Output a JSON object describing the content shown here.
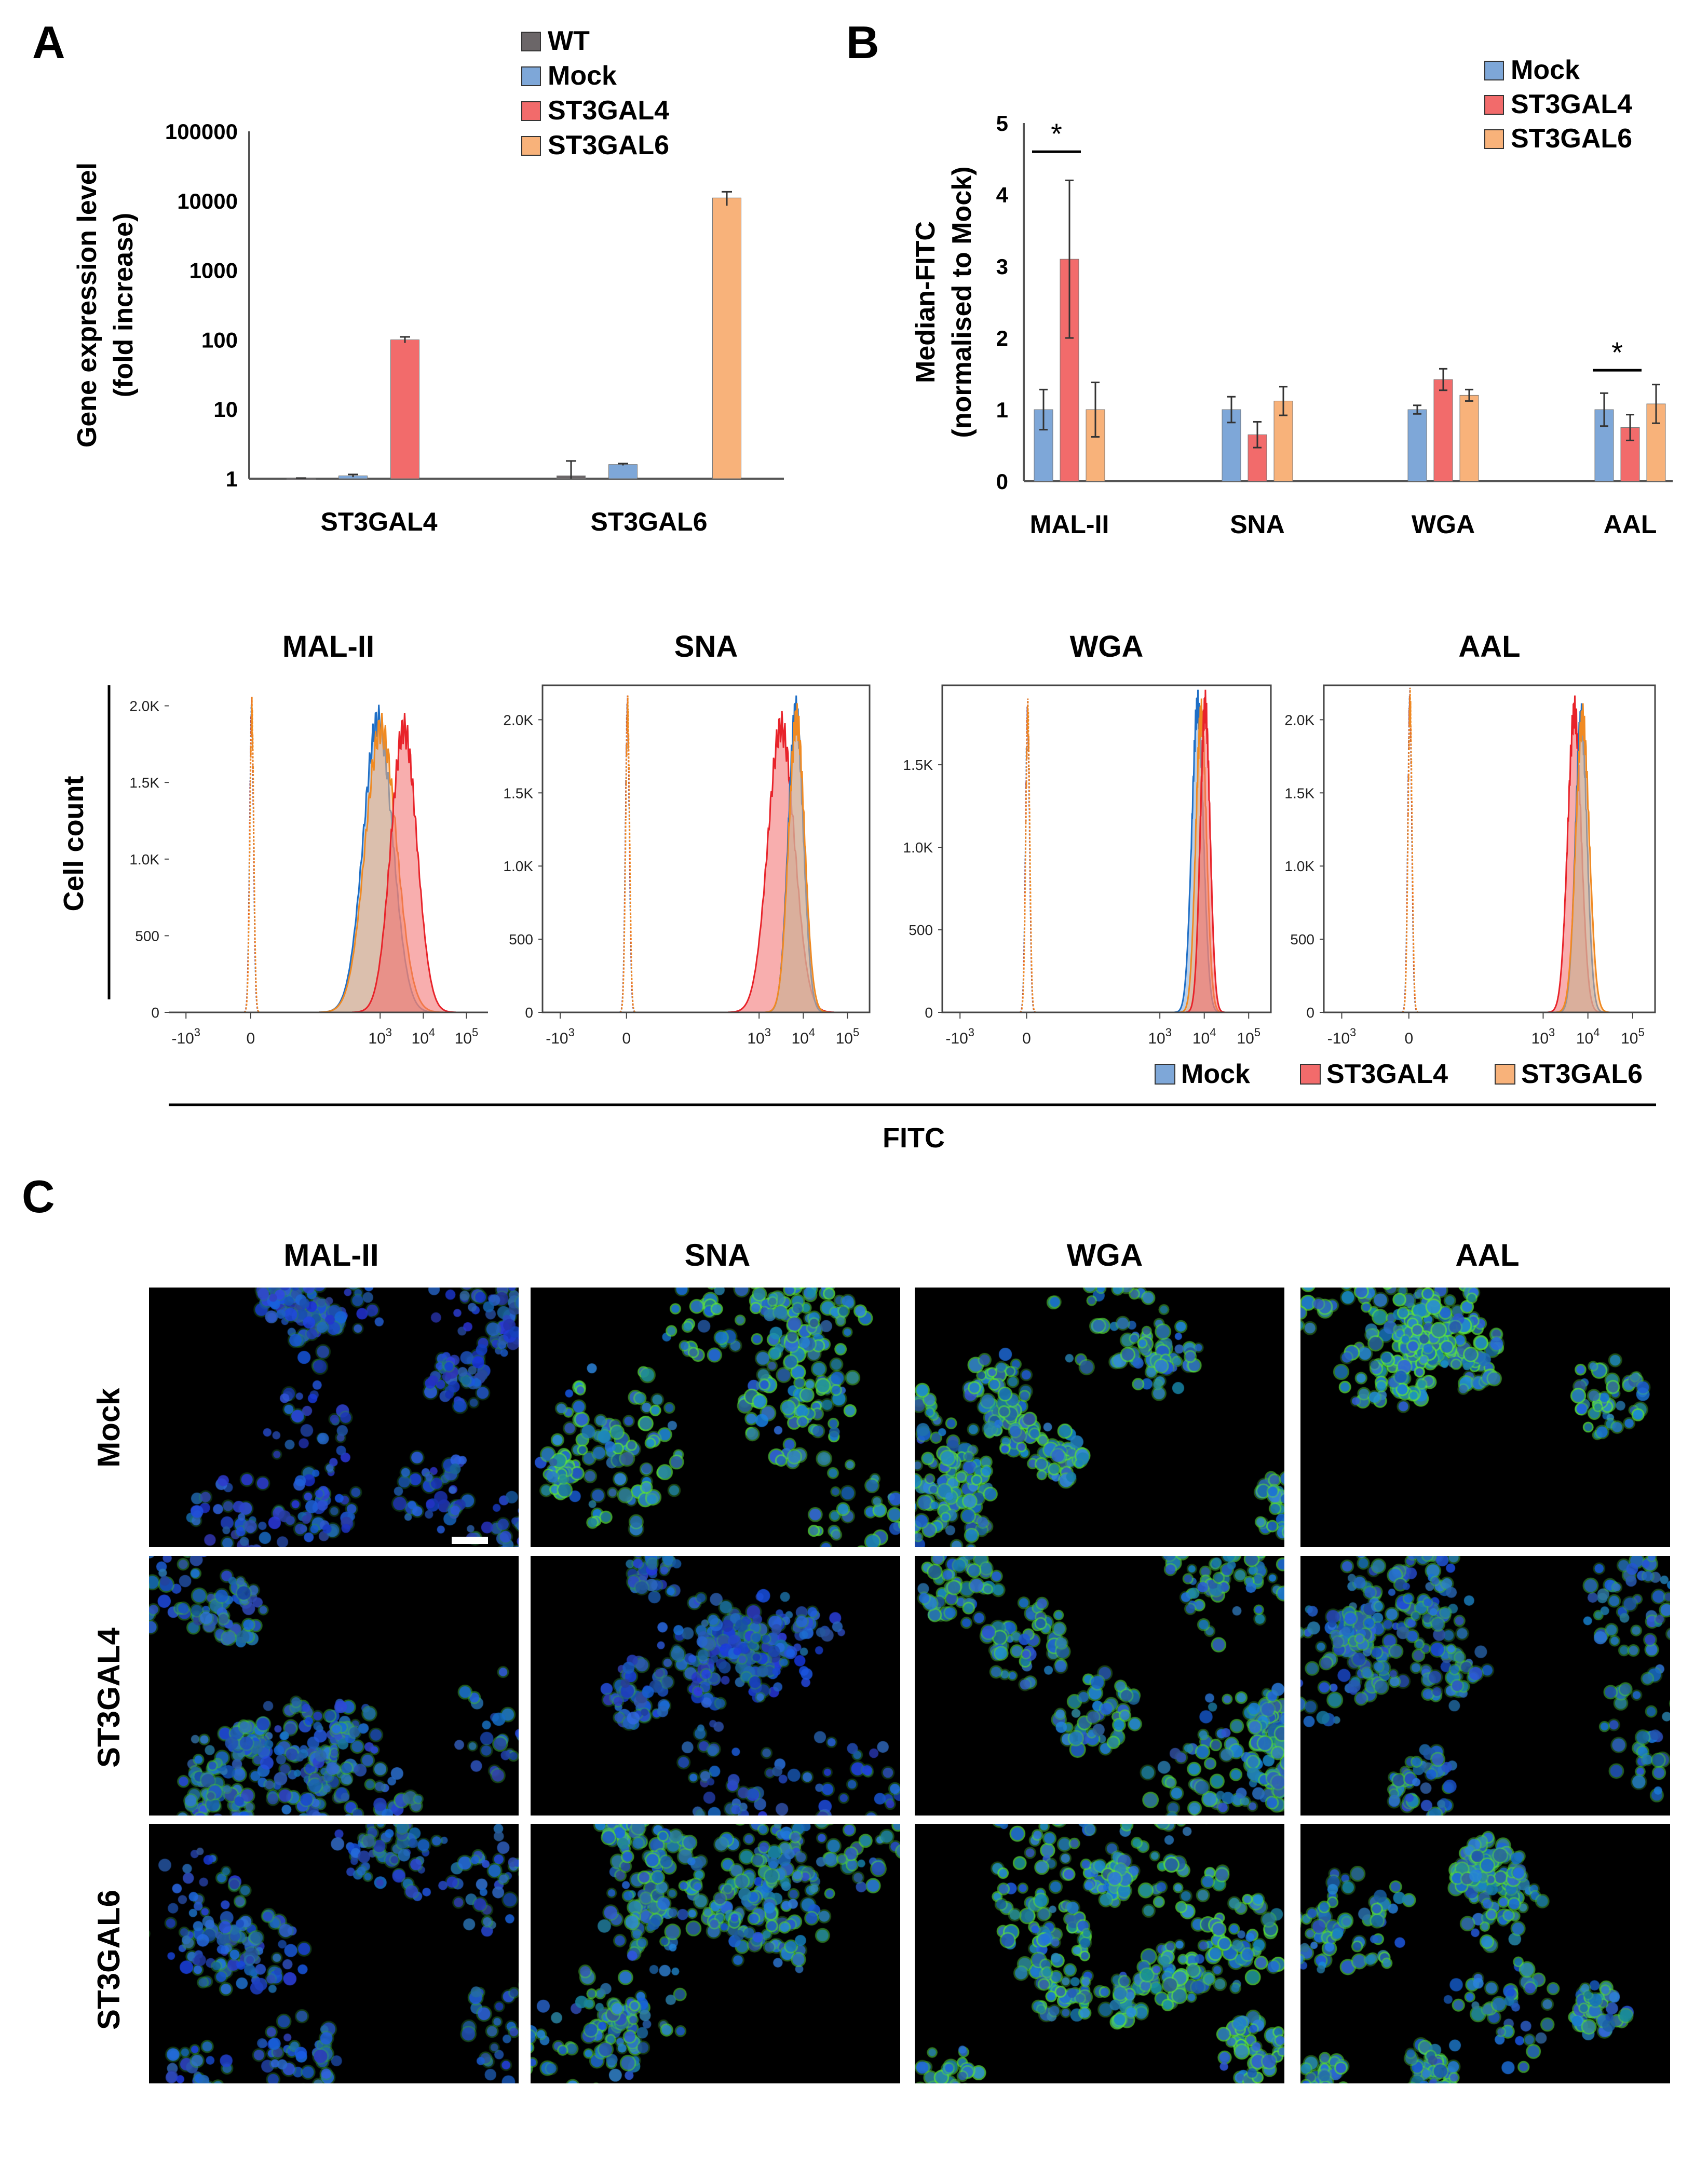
{
  "panel_labels": {
    "a": "A",
    "b": "B",
    "c": "C"
  },
  "colors": {
    "wt": "#6b6668",
    "mock": "#7ea7d8",
    "st3gal4": "#f26b6b",
    "st3gal6": "#f8b27a",
    "mock_line": "#1f6fc6",
    "st3gal4_line": "#e8232a",
    "st3gal6_line": "#f08a22",
    "axis": "#555555"
  },
  "chart_data": [
    {
      "id": "A",
      "type": "bar",
      "ylabel_line1": "Gene expression level",
      "ylabel_line2": "(fold increase)",
      "yscale": "log",
      "ylim": [
        1,
        100000
      ],
      "yticks": [
        1,
        10,
        100,
        1000,
        10000,
        100000
      ],
      "ytick_labels": [
        "1",
        "10",
        "100",
        "1000",
        "10000",
        "100000"
      ],
      "categories": [
        "ST3GAL4",
        "ST3GAL6"
      ],
      "legend_placement": "top-center",
      "series": [
        {
          "name": "WT",
          "values": [
            1,
            1.1
          ],
          "err": [
            0.02,
            0.7
          ]
        },
        {
          "name": "Mock",
          "values": [
            1.1,
            1.6
          ],
          "err": [
            0.05,
            0.05
          ]
        },
        {
          "name": "ST3GAL4",
          "values": [
            100,
            null
          ],
          "err": [
            10,
            null
          ]
        },
        {
          "name": "ST3GAL6",
          "values": [
            null,
            11000
          ],
          "err": [
            null,
            2500
          ]
        }
      ]
    },
    {
      "id": "B",
      "type": "bar",
      "ylabel_line1": "Median-FITC",
      "ylabel_line2": "(normalised to Mock)",
      "ylim": [
        0,
        5
      ],
      "yticks": [
        0,
        1,
        2,
        3,
        4,
        5
      ],
      "ytick_labels": [
        "0",
        "1",
        "2",
        "3",
        "4",
        "5"
      ],
      "categories": [
        "MAL-II",
        "SNA",
        "WGA",
        "AAL"
      ],
      "legend_placement": "top-right",
      "series": [
        {
          "name": "Mock",
          "values": [
            1.0,
            1.0,
            1.0,
            1.0
          ],
          "err": [
            0.28,
            0.18,
            0.06,
            0.23
          ]
        },
        {
          "name": "ST3GAL4",
          "values": [
            3.1,
            0.65,
            1.42,
            0.75
          ],
          "err": [
            1.1,
            0.18,
            0.15,
            0.18
          ]
        },
        {
          "name": "ST3GAL6",
          "values": [
            1.0,
            1.12,
            1.2,
            1.08
          ],
          "err": [
            0.38,
            0.2,
            0.08,
            0.27
          ]
        }
      ],
      "significance": [
        {
          "category": "MAL-II",
          "pair": [
            "Mock",
            "ST3GAL4"
          ],
          "y": 4.6,
          "label": "*"
        },
        {
          "category": "AAL",
          "pair": [
            "Mock",
            "ST3GAL4"
          ],
          "y": 1.55,
          "label": "*"
        }
      ]
    },
    {
      "id": "histograms",
      "type": "area",
      "ylabel": "Cell count",
      "xlabel": "FITC",
      "xscale": "biexponential",
      "xtick_labels": [
        "-10 3",
        "0",
        "10 3",
        "10 4",
        "10 5"
      ],
      "legend_placement": "bottom-right",
      "legend": [
        "Mock",
        "ST3GAL4",
        "ST3GAL6"
      ],
      "panels": [
        {
          "title": "MAL-II",
          "ymax": 2100,
          "yticks": [
            0,
            500,
            1000,
            1500,
            2000
          ],
          "ytick_labels": [
            "0",
            "500",
            "1.0K",
            "1.5K",
            "2.0K"
          ],
          "controls": [
            {
              "pos": 0.02,
              "peak": 1950,
              "width": 0.045
            }
          ],
          "series": [
            {
              "name": "Mock",
              "pos": 2.95,
              "peak": 1900,
              "width": 0.34
            },
            {
              "name": "ST3GAL6",
              "pos": 3.02,
              "peak": 1850,
              "width": 0.36
            },
            {
              "name": "ST3GAL4",
              "pos": 3.55,
              "peak": 1850,
              "width": 0.3
            }
          ]
        },
        {
          "title": "SNA",
          "ymax": 2200,
          "yticks": [
            0,
            500,
            1000,
            1500,
            2000
          ],
          "ytick_labels": [
            "0",
            "500",
            "1.0K",
            "1.5K",
            "2.0K"
          ],
          "controls": [
            {
              "pos": 0.02,
              "peak": 2050,
              "width": 0.045
            }
          ],
          "series": [
            {
              "name": "ST3GAL4",
              "pos": 3.5,
              "peak": 1950,
              "width": 0.3
            },
            {
              "name": "Mock",
              "pos": 3.83,
              "peak": 2050,
              "width": 0.17
            },
            {
              "name": "ST3GAL6",
              "pos": 3.85,
              "peak": 2000,
              "width": 0.18
            }
          ]
        },
        {
          "title": "WGA",
          "ymax": 1950,
          "yticks": [
            0,
            500,
            1000,
            1500
          ],
          "ytick_labels": [
            "0",
            "500",
            "1.0K",
            "1.5K"
          ],
          "controls": [
            {
              "pos": 0.02,
              "peak": 1800,
              "width": 0.045
            }
          ],
          "series": [
            {
              "name": "Mock",
              "pos": 3.85,
              "peak": 1850,
              "width": 0.13
            },
            {
              "name": "ST3GAL6",
              "pos": 3.93,
              "peak": 1800,
              "width": 0.12
            },
            {
              "name": "ST3GAL4",
              "pos": 4.02,
              "peak": 1850,
              "width": 0.11
            }
          ]
        },
        {
          "title": "AAL",
          "ymax": 2200,
          "yticks": [
            0,
            500,
            1000,
            1500,
            2000
          ],
          "ytick_labels": [
            "0",
            "500",
            "1.0K",
            "1.5K",
            "2.0K"
          ],
          "controls": [
            {
              "pos": 0.02,
              "peak": 2100,
              "width": 0.045
            }
          ],
          "series": [
            {
              "name": "ST3GAL4",
              "pos": 3.7,
              "peak": 2050,
              "width": 0.15
            },
            {
              "name": "Mock",
              "pos": 3.85,
              "peak": 2000,
              "width": 0.13
            },
            {
              "name": "ST3GAL6",
              "pos": 3.88,
              "peak": 2000,
              "width": 0.15
            }
          ]
        }
      ]
    }
  ],
  "microscopy": {
    "columns": [
      "MAL-II",
      "SNA",
      "WGA",
      "AAL"
    ],
    "rows": [
      "Mock",
      "ST3GAL4",
      "ST3GAL6"
    ],
    "green_intensity": [
      [
        0.12,
        0.85,
        0.8,
        0.88
      ],
      [
        0.45,
        0.25,
        0.75,
        0.55
      ],
      [
        0.3,
        0.7,
        0.85,
        0.75
      ]
    ],
    "cell_density": [
      [
        0.85,
        0.55,
        0.6,
        0.45
      ],
      [
        0.7,
        0.6,
        0.6,
        0.65
      ],
      [
        0.55,
        0.85,
        0.75,
        0.65
      ]
    ]
  }
}
